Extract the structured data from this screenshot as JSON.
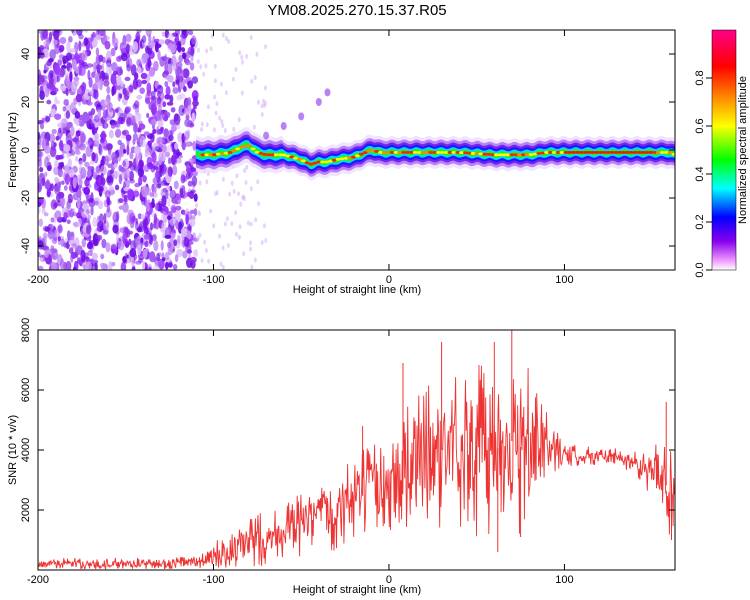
{
  "title": "YM08.2025.270.15.37.R05",
  "chart_data": [
    {
      "type": "heatmap",
      "title": "",
      "xlabel": "Height of straight line (km)",
      "ylabel": "Frequency (Hz)",
      "xlim": [
        -200,
        163
      ],
      "ylim": [
        -50,
        50
      ],
      "x_ticks": [
        -200,
        -100,
        0,
        100
      ],
      "x_tick_labels": [
        "-200",
        "-100",
        "0",
        "100"
      ],
      "y_ticks": [
        -40,
        -20,
        0,
        20,
        40
      ],
      "y_tick_labels": [
        "-40",
        "-20",
        "0",
        "20",
        "40"
      ],
      "colorbar": {
        "label": "Normalized spectral amplitude",
        "range": [
          0,
          1
        ],
        "ticks": [
          0.0,
          0.2,
          0.4,
          0.6,
          0.8
        ],
        "tick_labels": [
          "0.0",
          "0.2",
          "0.4",
          "0.6",
          "0.8"
        ],
        "colors": [
          "#ffffff",
          "#ee99ff",
          "#8800ee",
          "#0000ff",
          "#00ffff",
          "#00ff00",
          "#ffff00",
          "#ff8800",
          "#ff0000",
          "#ff0088"
        ]
      },
      "noise_region_x": [
        -200,
        -110
      ],
      "ridge": {
        "x": [
          -110,
          -100,
          -90,
          -85,
          -80,
          -75,
          -70,
          -60,
          -50,
          -45,
          -40,
          -35,
          -30,
          -20,
          -10,
          -5,
          0,
          10,
          20,
          40,
          60,
          80,
          90,
          100,
          120,
          140,
          160,
          163
        ],
        "y": [
          -2,
          -2,
          -1,
          1,
          2,
          -1,
          -2,
          -2,
          -4,
          -6,
          -5,
          -5,
          -4,
          -3,
          0,
          -1,
          -1,
          -1,
          -1,
          -1,
          -2,
          -2,
          -1,
          -1,
          -1,
          -1,
          -1,
          -2
        ]
      },
      "side_streak": {
        "x": [
          -70,
          -60,
          -50,
          -40,
          -35
        ],
        "y": [
          6,
          10,
          14,
          20,
          24
        ]
      }
    },
    {
      "type": "line",
      "title": "",
      "xlabel": "Height of straight line (km)",
      "ylabel": "SNR (10 * v/v)",
      "xlim": [
        -200,
        163
      ],
      "ylim": [
        0,
        8000
      ],
      "x_ticks": [
        -200,
        -100,
        0,
        100
      ],
      "x_tick_labels": [
        "-200",
        "-100",
        "0",
        "100"
      ],
      "y_ticks": [
        2000,
        4000,
        6000,
        8000
      ],
      "y_tick_labels": [
        "2000",
        "4000",
        "6000",
        "8000"
      ],
      "color": "#ee3333",
      "series": [
        {
          "name": "SNR",
          "envelope_x": [
            -200,
            -150,
            -110,
            -100,
            -80,
            -60,
            -40,
            -20,
            0,
            20,
            40,
            60,
            70,
            80,
            90,
            100,
            120,
            140,
            150,
            160,
            163
          ],
          "envelope_mean": [
            200,
            200,
            250,
            400,
            900,
            1300,
            1700,
            2300,
            3000,
            3800,
            4200,
            4000,
            4300,
            3900,
            4100,
            3800,
            3800,
            3600,
            3300,
            2700,
            3200
          ],
          "envelope_amp": [
            200,
            200,
            250,
            500,
            900,
            1000,
            1200,
            1500,
            1800,
            2400,
            2800,
            3200,
            3200,
            2800,
            1200,
            400,
            300,
            400,
            900,
            1600,
            1800
          ],
          "peaks": [
            {
              "x": -15,
              "y": 4800
            },
            {
              "x": 8,
              "y": 6900
            },
            {
              "x": 30,
              "y": 7600
            },
            {
              "x": 60,
              "y": 7600
            },
            {
              "x": 70,
              "y": 8000
            },
            {
              "x": 62,
              "y": 600
            },
            {
              "x": 75,
              "y": 1100
            },
            {
              "x": 158,
              "y": 5600
            },
            {
              "x": 161,
              "y": 1000
            },
            {
              "x": 163,
              "y": 6500
            }
          ]
        }
      ]
    }
  ]
}
